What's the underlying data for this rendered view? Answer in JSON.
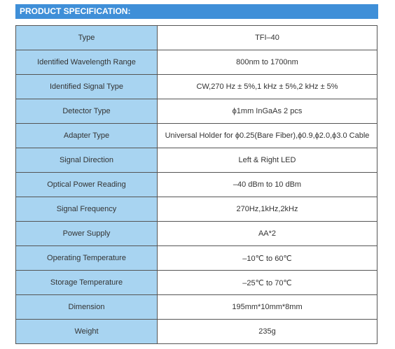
{
  "header": {
    "title": "PRODUCT SPECIFICATION:"
  },
  "table": {
    "rows": [
      [
        "Type",
        "TFI–40"
      ],
      [
        "Identified Wavelength Range",
        "800nm to 1700nm"
      ],
      [
        "Identified Signal Type",
        "CW,270 Hz ± 5%,1 kHz ± 5%,2 kHz ± 5%"
      ],
      [
        "Detector Type",
        "ϕ1mm InGaAs 2 pcs"
      ],
      [
        "Adapter Type",
        "Universal Holder for ϕ0.25(Bare Fiber),ϕ0.9,ϕ2.0,ϕ3.0 Cable"
      ],
      [
        "Signal Direction",
        "Left & Right LED"
      ],
      [
        "Optical Power Reading",
        "–40 dBm to 10 dBm"
      ],
      [
        "Signal Frequency",
        "270Hz,1kHz,2kHz"
      ],
      [
        "Power Supply",
        "AA*2"
      ],
      [
        "Operating Temperature",
        "–10℃ to 60℃"
      ],
      [
        "Storage Temperature",
        "–25℃ to 70℃"
      ],
      [
        "Dimension",
        "195mm*10mm*8mm"
      ],
      [
        "Weight",
        "235g"
      ]
    ]
  }
}
